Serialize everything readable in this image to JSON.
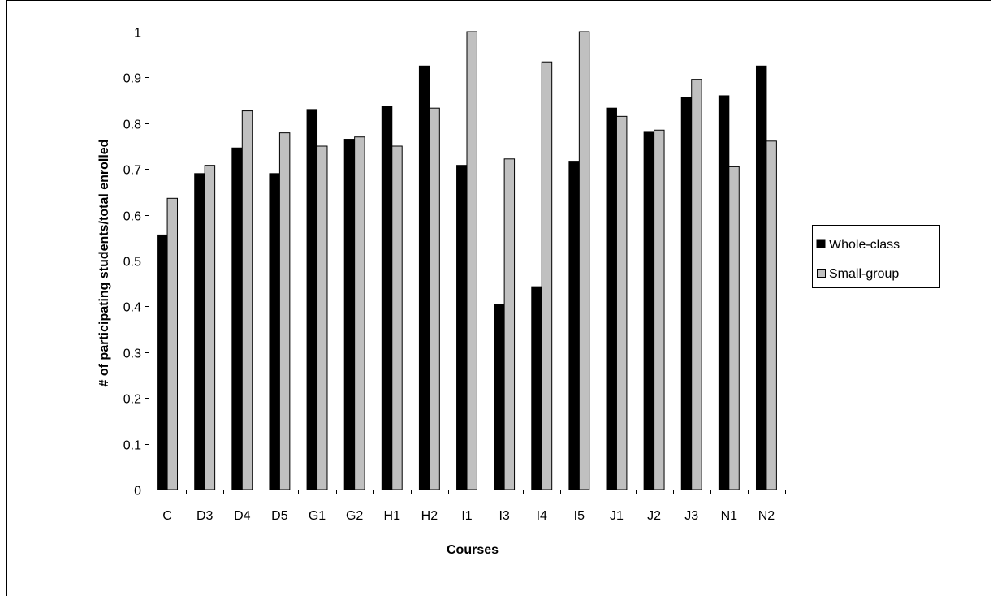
{
  "chart_data": {
    "type": "bar",
    "title": "",
    "xlabel": "Courses",
    "ylabel": "# of participating students/total enrolled",
    "ylim": [
      0,
      1
    ],
    "y_ticks": [
      0,
      0.1,
      0.2,
      0.3,
      0.4,
      0.5,
      0.6,
      0.7,
      0.8,
      0.9,
      1
    ],
    "y_tick_labels": [
      "0",
      "0.1",
      "0.2",
      "0.3",
      "0.4",
      "0.5",
      "0.6",
      "0.7",
      "0.8",
      "0.9",
      "1"
    ],
    "grid": false,
    "legend_position": "right",
    "categories": [
      "C",
      "D3",
      "D4",
      "D5",
      "G1",
      "G2",
      "H1",
      "H2",
      "I1",
      "I3",
      "I4",
      "I5",
      "J1",
      "J2",
      "J3",
      "N1",
      "N2"
    ],
    "series": [
      {
        "name": "Whole-class",
        "color": "#000000",
        "values": [
          0.556,
          0.69,
          0.746,
          0.69,
          0.83,
          0.765,
          0.836,
          0.925,
          0.708,
          0.404,
          0.443,
          0.717,
          0.833,
          0.782,
          0.857,
          0.86,
          0.925
        ]
      },
      {
        "name": "Small-group",
        "color": "#c0c0c0",
        "values": [
          0.636,
          0.708,
          0.827,
          0.779,
          0.75,
          0.77,
          0.75,
          0.833,
          1.0,
          0.722,
          0.934,
          1.0,
          0.815,
          0.785,
          0.896,
          0.705,
          0.761
        ]
      }
    ]
  }
}
